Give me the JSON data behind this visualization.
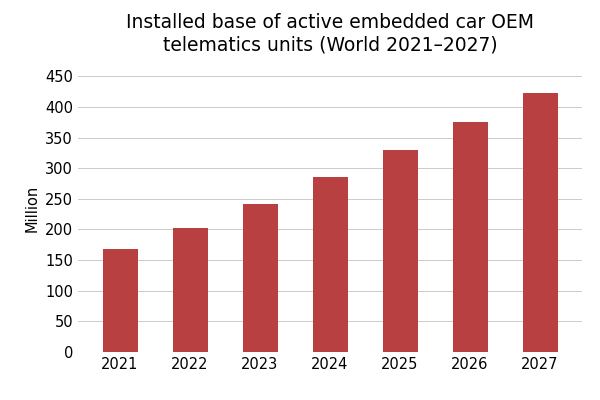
{
  "title": "Installed base of active embedded car OEM\ntelematics units (World 2021–2027)",
  "years": [
    "2021",
    "2022",
    "2023",
    "2024",
    "2025",
    "2026",
    "2027"
  ],
  "values": [
    168,
    202,
    242,
    285,
    330,
    375,
    423
  ],
  "bar_color": "#b94040",
  "ylabel": "Million",
  "ylim": [
    0,
    470
  ],
  "yticks": [
    0,
    50,
    100,
    150,
    200,
    250,
    300,
    350,
    400,
    450
  ],
  "title_fontsize": 13.5,
  "axis_fontsize": 10.5,
  "tick_fontsize": 10.5,
  "background_color": "#ffffff",
  "grid_color": "#cccccc",
  "bar_width": 0.5
}
